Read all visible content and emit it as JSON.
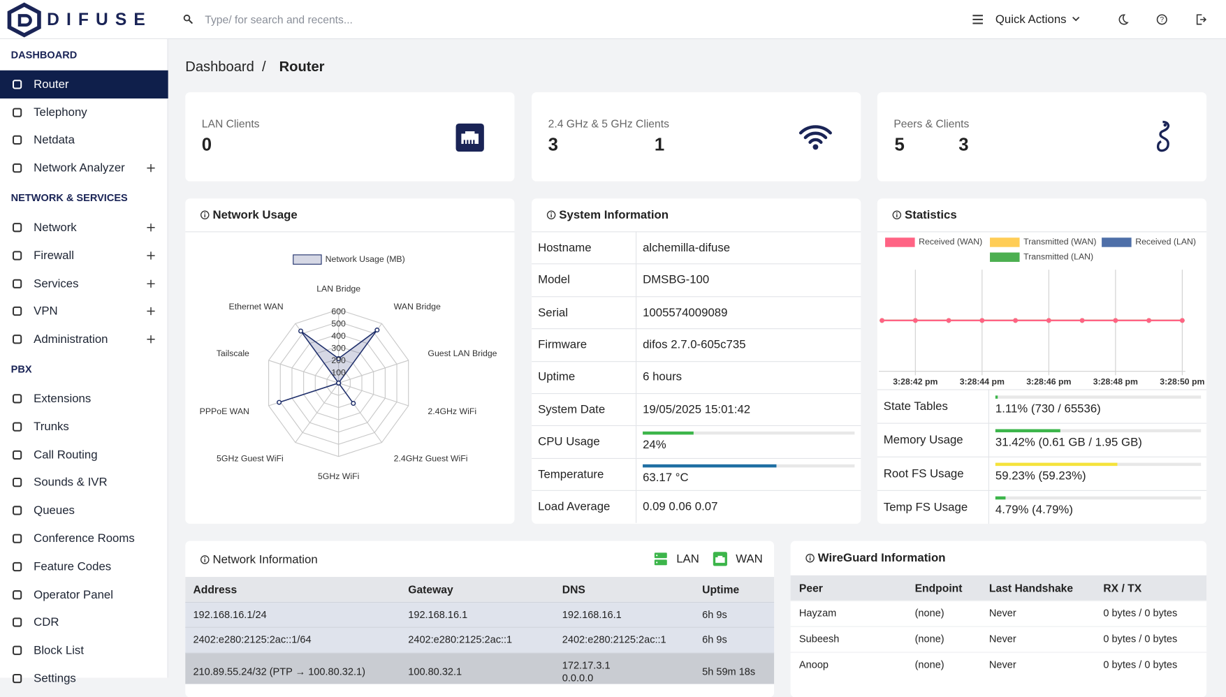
{
  "header": {
    "logo": "DIFUSE",
    "search_placeholder": "Type/ for search and recents...",
    "quick_actions": "Quick Actions"
  },
  "sidebar": [
    {
      "title": "DASHBOARD",
      "items": [
        {
          "label": "Router",
          "active": true
        },
        {
          "label": "Telephony"
        },
        {
          "label": "Netdata"
        },
        {
          "label": "Network Analyzer",
          "expandable": true
        }
      ]
    },
    {
      "title": "NETWORK & SERVICES",
      "items": [
        {
          "label": "Network",
          "expandable": true
        },
        {
          "label": "Firewall",
          "expandable": true
        },
        {
          "label": "Services",
          "expandable": true
        },
        {
          "label": "VPN",
          "expandable": true
        },
        {
          "label": "Administration",
          "expandable": true
        }
      ]
    },
    {
      "title": "PBX",
      "items": [
        {
          "label": "Extensions"
        },
        {
          "label": "Trunks"
        },
        {
          "label": "Call Routing"
        },
        {
          "label": "Sounds & IVR"
        },
        {
          "label": "Queues"
        },
        {
          "label": "Conference Rooms"
        },
        {
          "label": "Feature Codes"
        },
        {
          "label": "Operator Panel"
        },
        {
          "label": "CDR"
        },
        {
          "label": "Block List"
        },
        {
          "label": "Settings"
        }
      ]
    }
  ],
  "breadcrumb": [
    "Dashboard",
    "/",
    "Router"
  ],
  "cards": [
    {
      "label": "LAN Clients",
      "values": [
        0
      ]
    },
    {
      "label": "2.4 GHz & 5 GHz Clients",
      "values": [
        3,
        1
      ]
    },
    {
      "label": "Peers & Clients",
      "values": [
        5,
        3
      ]
    }
  ],
  "network_usage": {
    "title": "Network Usage"
  },
  "system_information": {
    "title": "System Information",
    "xlim": [
      0,
      100
    ],
    "rows": [
      {
        "label": "Hostname",
        "text": "alchemilla-difuse"
      },
      {
        "label": "Model",
        "text": "DMSBG-100"
      },
      {
        "label": "Serial",
        "text": "1005574009089"
      },
      {
        "label": "Firmware",
        "text": "difos 2.7.0-605c735"
      },
      {
        "label": "Uptime",
        "text": "6 hours"
      },
      {
        "label": "System Date",
        "text": "19/05/2025 15:01:42"
      },
      {
        "label": "CPU Usage",
        "value": 24,
        "value_label": "24%",
        "color": "#3cb54a"
      },
      {
        "label": "Temperature",
        "value": 63.17,
        "value_label": "63.17 °C",
        "color": "#1f6fa3"
      },
      {
        "label": "Load Average",
        "text": "0.09 0.06 0.07"
      }
    ]
  },
  "statistics": {
    "title": "Statistics",
    "xlim": [
      0,
      100
    ],
    "rows": [
      {
        "label": "State Tables",
        "value": 1.11,
        "value_label": "1.11% (730 / 65536)",
        "color": "#3cb54a"
      },
      {
        "label": "Memory Usage",
        "value": 31.42,
        "value_label": "31.42% (0.61 GB / 1.95 GB)",
        "color": "#3cb54a"
      },
      {
        "label": "Root FS Usage",
        "value": 59.23,
        "value_label": "59.23% (59.23%)",
        "color": "#f5e33b"
      },
      {
        "label": "Temp FS Usage",
        "value": 4.79,
        "value_label": "4.79% (4.79%)",
        "color": "#3cb54a"
      }
    ]
  },
  "chart_data": [
    {
      "type": "radar",
      "series": [
        {
          "name": "Network Usage (MB)",
          "color": "#1f2f6b",
          "values": [
            200,
            535,
            0,
            0,
            205,
            0,
            0,
            510,
            0,
            525
          ]
        }
      ],
      "categories": [
        "LAN Bridge",
        "WAN Bridge",
        "Guest LAN Bridge",
        "2.4GHz WiFi",
        "2.4GHz Guest WiFi",
        "5GHz WiFi",
        "5GHz Guest WiFi",
        "PPPoE WAN",
        "Tailscale",
        "Ethernet WAN"
      ],
      "ylim": [
        0,
        600
      ],
      "yticks": [
        100,
        200,
        300,
        400,
        500,
        600
      ],
      "grid": true
    },
    {
      "type": "line",
      "categories": [
        null,
        "3:28:42 pm",
        null,
        "3:28:44 pm",
        null,
        "3:28:46 pm",
        null,
        "3:28:48 pm",
        null,
        "3:28:50 pm"
      ],
      "ylim": [
        -1,
        1
      ],
      "grid": true,
      "series": [
        {
          "name": "Received (WAN)",
          "color": "#ff6384",
          "values": [
            0,
            0,
            0,
            0,
            0,
            0,
            0,
            0,
            0,
            0
          ]
        },
        {
          "name": "Transmitted (WAN)",
          "color": "#ffcd56",
          "values": [
            0,
            0,
            0,
            0,
            0,
            0,
            0,
            0,
            0,
            0
          ]
        },
        {
          "name": "Received (LAN)",
          "color": "#4e6fa8",
          "values": [
            0,
            0,
            0,
            0,
            0,
            0,
            0,
            0,
            0,
            0
          ]
        },
        {
          "name": "Transmitted (LAN)",
          "color": "#4caf50",
          "values": [
            0,
            0,
            0,
            0,
            0,
            0,
            0,
            0,
            0,
            0
          ]
        }
      ]
    }
  ],
  "network_information": {
    "title": "Network Information",
    "legend": [
      "LAN",
      "WAN"
    ],
    "columns": [
      "Address",
      "Gateway",
      "DNS",
      "Uptime"
    ],
    "rows": [
      [
        "192.168.16.1/24",
        "192.168.16.1",
        "192.168.16.1",
        "6h 9s"
      ],
      [
        "2402:e280:2125:2ac::1/64",
        "2402:e280:2125:2ac::1",
        "2402:e280:2125:2ac::1",
        "6h 9s"
      ],
      [
        "210.89.55.24/32 (PTP → 100.80.32.1)",
        "100.80.32.1",
        [
          "172.17.3.1",
          "0.0.0.0"
        ],
        "5h 59m 18s"
      ]
    ]
  },
  "wireguard": {
    "title": "WireGuard Information",
    "columns": [
      "Peer",
      "Endpoint",
      "Last Handshake",
      "RX / TX"
    ],
    "rows": [
      [
        "Hayzam",
        "(none)",
        "Never",
        "0 bytes / 0 bytes"
      ],
      [
        "Subeesh",
        "(none)",
        "Never",
        "0 bytes / 0 bytes"
      ],
      [
        "Anoop",
        "(none)",
        "Never",
        "0 bytes / 0 bytes"
      ]
    ]
  }
}
